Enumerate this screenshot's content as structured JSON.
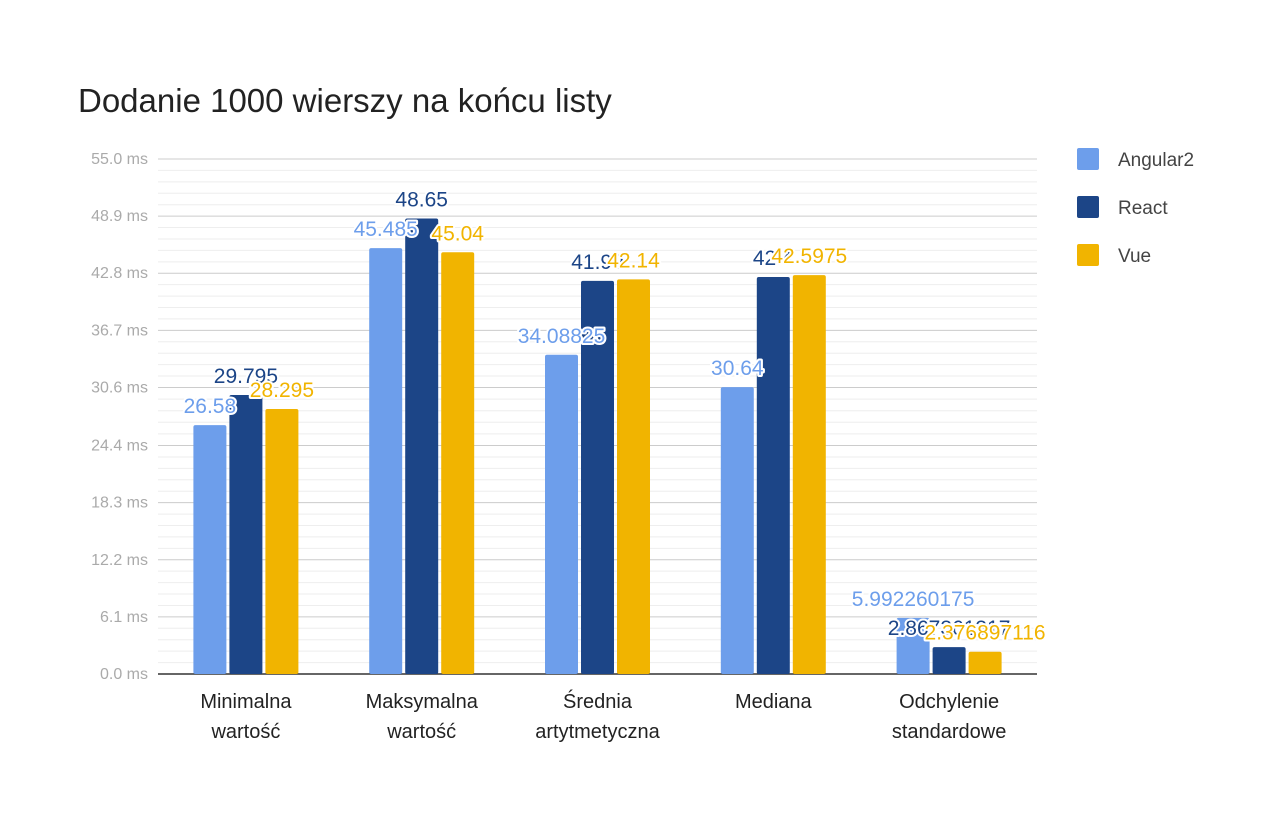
{
  "chart_data": {
    "type": "bar",
    "title": "Dodanie 1000 wierszy na końcu listy",
    "xlabel": "",
    "ylabel": "",
    "ylim": [
      0,
      55.0
    ],
    "y_ticks": [
      "0.0 ms",
      "6.1 ms",
      "12.2 ms",
      "18.3 ms",
      "24.4 ms",
      "30.6 ms",
      "36.7 ms",
      "42.8 ms",
      "48.9 ms",
      "55.0 ms"
    ],
    "y_tick_values": [
      0,
      6.1,
      12.2,
      18.3,
      24.4,
      30.6,
      36.7,
      42.8,
      48.9,
      55.0
    ],
    "grid": true,
    "legend_position": "right",
    "categories": [
      [
        "Minimalna",
        "wartość"
      ],
      [
        "Maksymalna",
        "wartość"
      ],
      [
        "Średnia",
        "artytmetyczna"
      ],
      [
        "Mediana"
      ],
      [
        "Odchylenie",
        "standardowe"
      ]
    ],
    "series": [
      {
        "name": "Angular2",
        "color": "#6d9eeb",
        "values": [
          26.58,
          45.485,
          34.08825,
          30.64,
          5.992260175
        ],
        "labels": [
          "26.58",
          "45.485",
          "34.08825",
          "30.64",
          "5.992260175"
        ]
      },
      {
        "name": "React",
        "color": "#1c4587",
        "values": [
          29.795,
          48.65,
          41.99,
          42.4,
          2.867361317
        ],
        "labels": [
          "29.795",
          "48.65",
          "41.99",
          "42.4",
          "2.867361317"
        ]
      },
      {
        "name": "Vue",
        "color": "#f1b400",
        "values": [
          28.295,
          45.04,
          42.14,
          42.5975,
          2.376897116
        ],
        "labels": [
          "28.295",
          "45.04",
          "42.14",
          "42.5975",
          "2.376897116"
        ]
      }
    ]
  }
}
